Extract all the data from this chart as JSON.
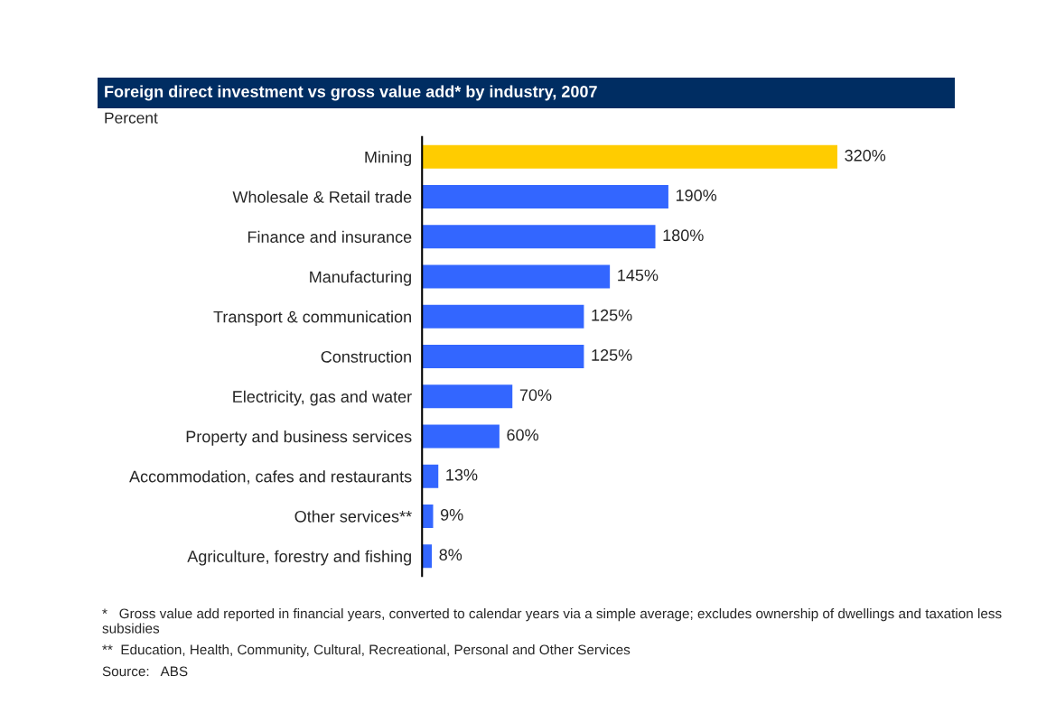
{
  "chart_data": {
    "type": "bar",
    "orientation": "horizontal",
    "title": "Foreign direct investment vs gross value add* by industry, 2007",
    "subtitle": "Percent",
    "categories": [
      "Mining",
      "Wholesale & Retail trade",
      "Finance and insurance",
      "Manufacturing",
      "Transport & communication",
      "Construction",
      "Electricity, gas and water",
      "Property and business services",
      "Accommodation, cafes and restaurants",
      "Other services**",
      "Agriculture, forestry and fishing"
    ],
    "values": [
      320,
      190,
      180,
      145,
      125,
      125,
      70,
      60,
      13,
      9,
      8
    ],
    "value_labels": [
      "320%",
      "190%",
      "180%",
      "145%",
      "125%",
      "125%",
      "70%",
      "60%",
      "13%",
      "9%",
      "8%"
    ],
    "colors": [
      "#ffcc00",
      "#3366ff",
      "#3366ff",
      "#3366ff",
      "#3366ff",
      "#3366ff",
      "#3366ff",
      "#3366ff",
      "#3366ff",
      "#3366ff",
      "#3366ff"
    ],
    "tick_labels": "y",
    "grid": false,
    "legend": false,
    "annotations": [
      "*   Gross value add reported in financial years, converted to calendar years via a simple average; excludes ownership of dwellings and taxation less subsidies",
      "**  Education, Health, Community, Cultural, Recreational, Personal and Other Services",
      "Source:   ABS"
    ]
  }
}
